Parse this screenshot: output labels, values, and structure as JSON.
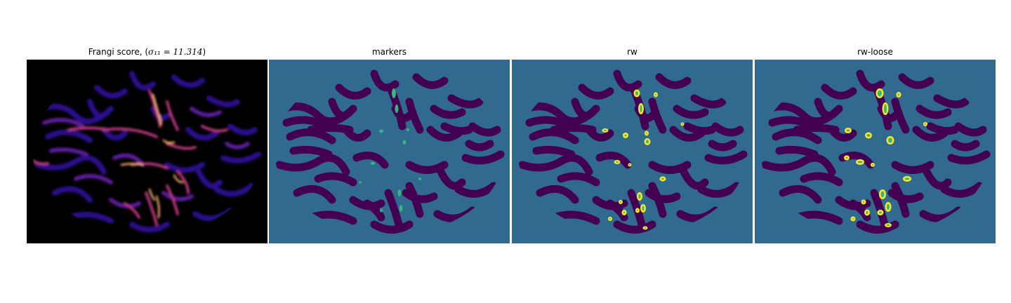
{
  "panels": [
    {
      "title_prefix": "Frangi score, (",
      "title_math": "σ₁₁ = 11.314",
      "title_suffix": ")",
      "colormap": "magma"
    },
    {
      "title": "markers",
      "colormap": "viridis"
    },
    {
      "title": "rw",
      "colormap": "viridis"
    },
    {
      "title": "rw-loose",
      "colormap": "viridis"
    }
  ],
  "colors": {
    "background": "#306a8f",
    "foreground": "#440154",
    "marker": "#35b779",
    "segment": "#fde725",
    "frangi_bg": "#000000",
    "frangi_low": "#2c0a8a",
    "frangi_mid": "#b5367a",
    "frangi_high": "#fcb36a"
  }
}
